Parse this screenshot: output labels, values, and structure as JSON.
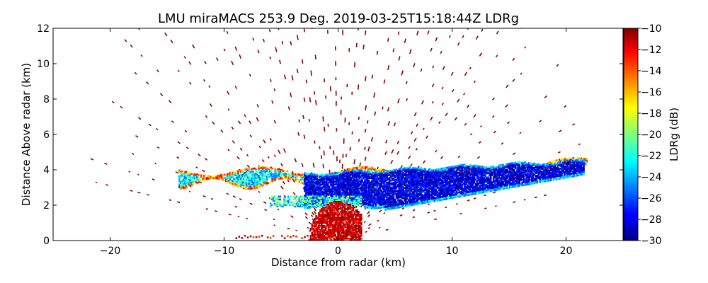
{
  "chart_data": {
    "type": "heatmap",
    "title": "LMU miraMACS 253.9 Deg. 2019-03-25T15:18:44Z  LDRg",
    "xlabel": "Distance from radar (km)",
    "ylabel": "Distance Above radar  (km)",
    "xlim": [
      -25,
      25
    ],
    "ylim": [
      0,
      12
    ],
    "xticks": [
      -20,
      -10,
      0,
      10,
      20
    ],
    "yticks": [
      0,
      2,
      4,
      6,
      8,
      10,
      12
    ],
    "xtick_labels": [
      "−20",
      "−10",
      "0",
      "10",
      "20"
    ],
    "ytick_labels": [
      "0",
      "2",
      "4",
      "6",
      "8",
      "10",
      "12"
    ],
    "colorbar": {
      "label": "LDRg (dB)",
      "min": -30,
      "max": -10,
      "ticks": [
        -10,
        -12,
        -14,
        -16,
        -18,
        -20,
        -22,
        -24,
        -26,
        -28,
        -30
      ],
      "tick_labels": [
        "−10",
        "−12",
        "−14",
        "−16",
        "−18",
        "−20",
        "−22",
        "−24",
        "−26",
        "−28",
        "−30"
      ],
      "colormap": "jet"
    },
    "radar": {
      "scan_azimuth_deg": 253.9,
      "max_range_km": 22
    },
    "features": [
      {
        "region": "sparse noise speckle",
        "range_km": [
          0,
          22
        ],
        "ldr_db": -10
      },
      {
        "region": "cloud layer (low LDR)",
        "x_km": [
          -3,
          21
        ],
        "z_km": [
          1.7,
          4.2
        ],
        "ldr_db": -28
      },
      {
        "region": "upper cloud layer edge",
        "x_km": [
          -14,
          22
        ],
        "z_km": [
          3.2,
          4.2
        ],
        "ldr_db": -20
      },
      {
        "region": "near-radar clutter",
        "x_km": [
          -3,
          2
        ],
        "z_km": [
          0,
          2.3
        ],
        "ldr_db": -10
      }
    ],
    "grid": false
  },
  "colors": {
    "background": "#ffffff",
    "axes": "#000000",
    "noise": "#8b0000"
  }
}
